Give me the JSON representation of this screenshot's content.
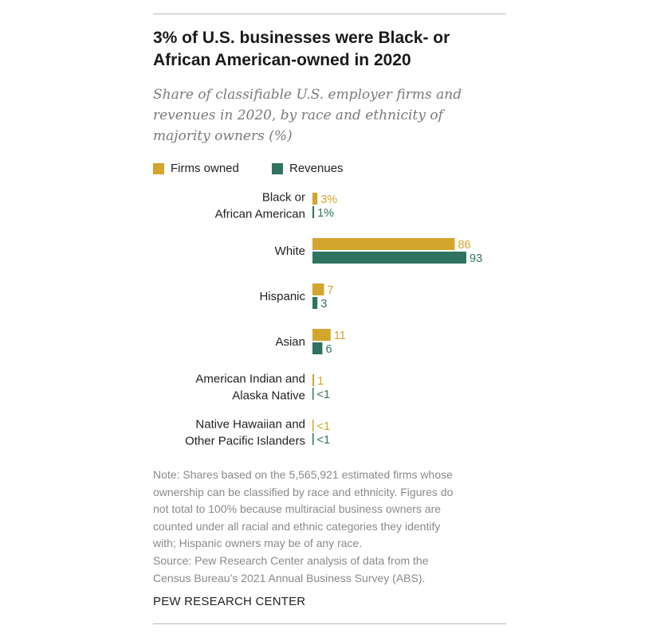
{
  "header": {
    "title_lines": [
      "3% of U.S. businesses were Black- or",
      "African American-owned in 2020"
    ],
    "subtitle_lines": [
      "Share of classifiable U.S. employer firms and",
      "revenues in 2020, by race and ethnicity of",
      "majority owners (%)"
    ]
  },
  "colors": {
    "firms": "#d4a52c",
    "revenues": "#2e7460",
    "label_text": "#1f1f1f"
  },
  "chart_data": {
    "type": "bar",
    "orientation": "horizontal",
    "categories": [
      [
        "Black or",
        "African American"
      ],
      [
        "White"
      ],
      [
        "Hispanic"
      ],
      [
        "Asian"
      ],
      [
        "American Indian and",
        "Alaska Native"
      ],
      [
        "Native Hawaiian and",
        "Other Pacific Islanders"
      ]
    ],
    "series": [
      {
        "name": "Firms owned",
        "color": "#d4a52c",
        "values": [
          3,
          86,
          7,
          11,
          1,
          0.3
        ],
        "labels": [
          "3%",
          "86",
          "7",
          "11",
          "1",
          "<1"
        ]
      },
      {
        "name": "Revenues",
        "color": "#2e7460",
        "values": [
          1,
          93,
          3,
          6,
          0.3,
          0.3
        ],
        "labels": [
          "1%",
          "93",
          "3",
          "6",
          "<1",
          "<1"
        ]
      }
    ],
    "xlim": [
      0,
      93
    ],
    "legend_position": "top-left",
    "grid": false
  },
  "footer": {
    "note_lines": [
      "Note: Shares based on the 5,565,921 estimated firms whose",
      "ownership can be classified by race and ethnicity. Figures do",
      "not total to 100% because multiracial business owners are",
      "counted under all racial and ethnic categories they identify",
      "with; Hispanic owners may be of any race.",
      "Source: Pew Research Center analysis of data from the",
      "Census Bureau’s 2021 Annual Business Survey (ABS)."
    ],
    "brand": "PEW RESEARCH CENTER"
  }
}
